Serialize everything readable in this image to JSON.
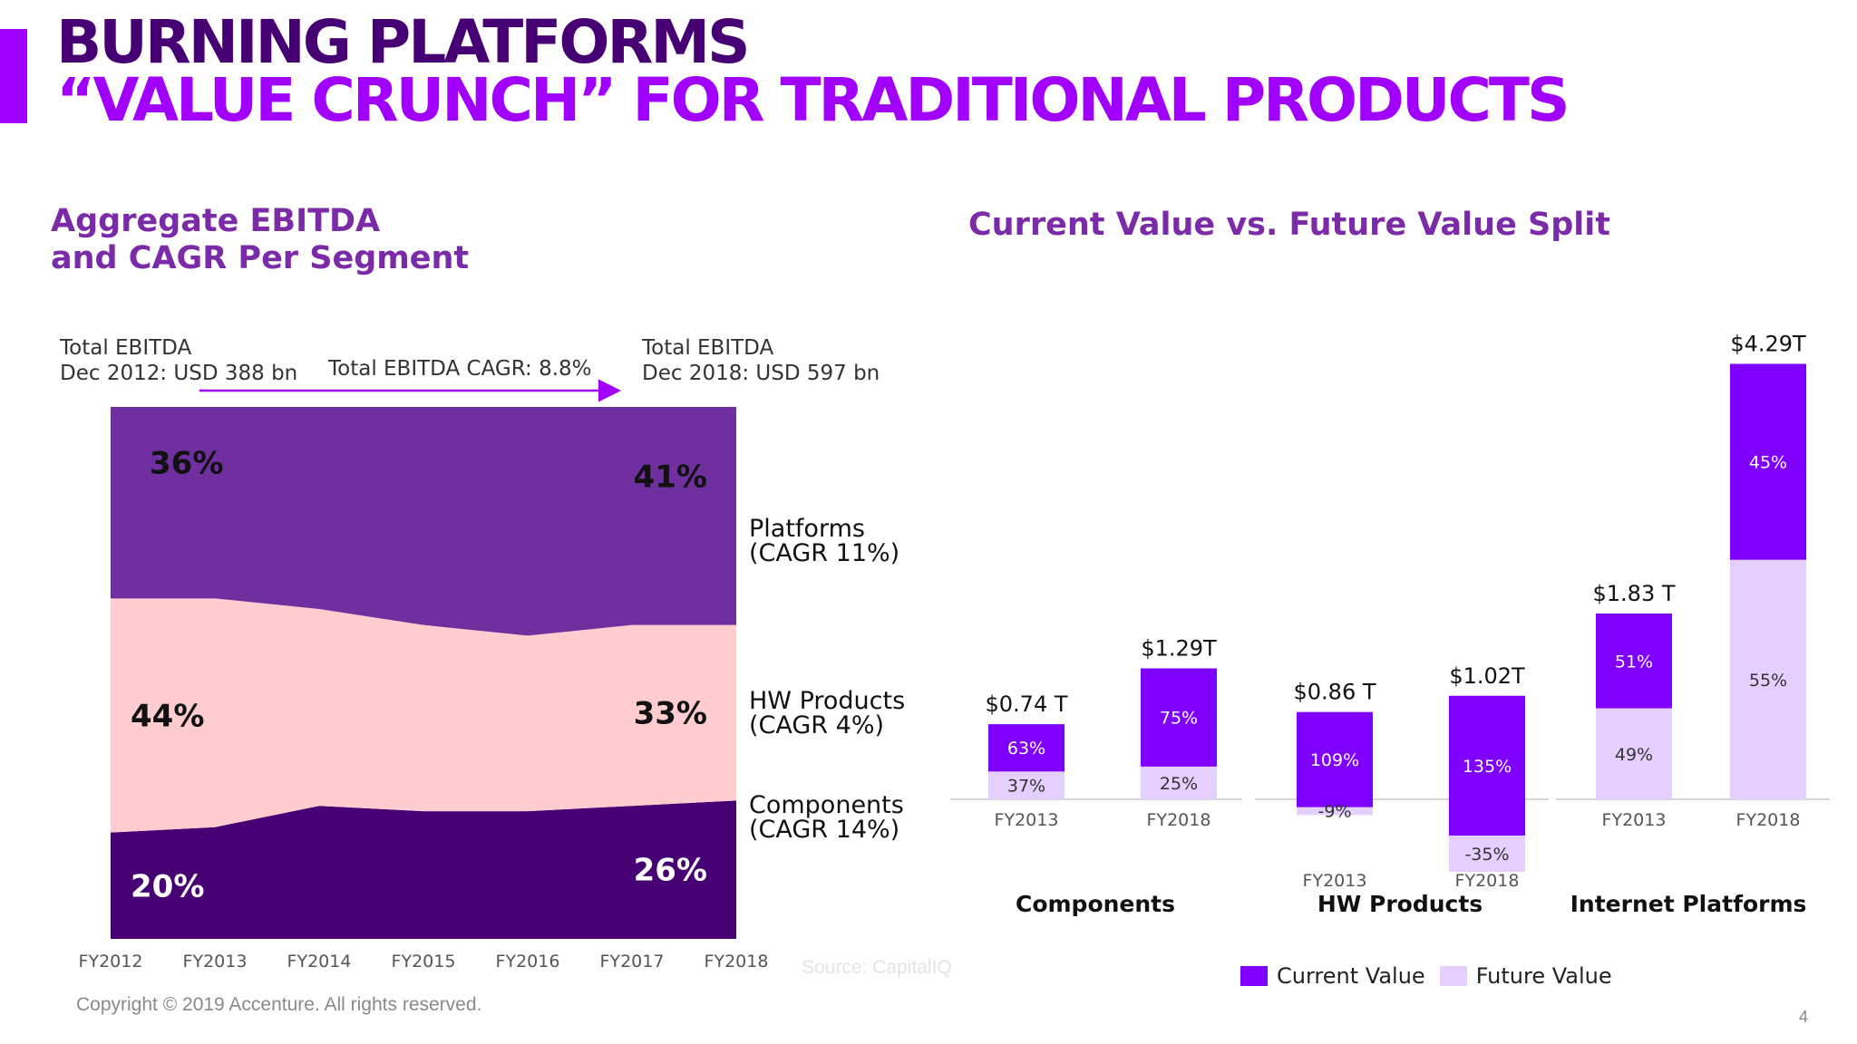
{
  "header": {
    "title_line1": "BURNING PLATFORMS",
    "title_line2": "“VALUE CRUNCH” FOR TRADITIONAL PRODUCTS"
  },
  "colors": {
    "accent": "#a100ff",
    "platforms": "#6f2f9f",
    "hw_products": "#ffcccf",
    "components": "#460073",
    "current_value": "#7f00ff",
    "future_value": "#e4cfff"
  },
  "left_panel": {
    "subtitle_line1": "Aggregate EBITDA",
    "subtitle_line2": "and CAGR Per Segment",
    "total_2012_line1": "Total EBITDA",
    "total_2012_line2": "Dec 2012: USD 388 bn",
    "cagr_note": "Total EBITDA CAGR: 8.8%",
    "total_2018_line1": "Total EBITDA",
    "total_2018_line2": "Dec  2018: USD 597 bn",
    "segments": [
      {
        "name_line1": "Platforms",
        "name_line2": "(CAGR 11%)"
      },
      {
        "name_line1": "HW Products",
        "name_line2": "(CAGR 4%)"
      },
      {
        "name_line1": "Components",
        "name_line2": "(CAGR 14%)"
      }
    ]
  },
  "right_panel": {
    "subtitle": "Current Value vs. Future Value Split"
  },
  "chart_data": [
    {
      "type": "area",
      "stacked": true,
      "normalized": true,
      "x": [
        "FY2012",
        "FY2013",
        "FY2014",
        "FY2015",
        "FY2016",
        "FY2017",
        "FY2018"
      ],
      "ylim": [
        0,
        100
      ],
      "series": [
        {
          "name": "Components",
          "values": [
            20,
            21,
            25,
            24,
            24,
            25,
            26
          ],
          "first_label": "20%",
          "last_label": "26%"
        },
        {
          "name": "HW Products",
          "values": [
            44,
            43,
            37,
            35,
            33,
            34,
            33
          ],
          "first_label": "44%",
          "last_label": "33%"
        },
        {
          "name": "Platforms",
          "values": [
            36,
            36,
            38,
            41,
            43,
            41,
            41
          ],
          "first_label": "36%",
          "last_label": "41%"
        }
      ]
    },
    {
      "type": "bar",
      "stacked": true,
      "legend": [
        "Current Value",
        "Future Value"
      ],
      "legend_position": "bottom",
      "groups": [
        {
          "name": "Components",
          "bars": [
            {
              "category": "FY2013",
              "total_label": "$0.74 T",
              "total": 0.74,
              "current_pct": 63,
              "future_pct": 37,
              "current_label": "63%",
              "future_label": "37%"
            },
            {
              "category": "FY2018",
              "total_label": "$1.29T",
              "total": 1.29,
              "current_pct": 75,
              "future_pct": 25,
              "current_label": "75%",
              "future_label": "25%"
            }
          ]
        },
        {
          "name": "HW Products",
          "bars": [
            {
              "category": "FY2013",
              "total_label": "$0.86 T",
              "total": 0.86,
              "current_pct": 109,
              "future_pct": -9,
              "current_label": "109%",
              "future_label": "-9%"
            },
            {
              "category": "FY2018",
              "total_label": "$1.02T",
              "total": 1.02,
              "current_pct": 135,
              "future_pct": -35,
              "current_label": "135%",
              "future_label": "-35%"
            }
          ]
        },
        {
          "name": "Internet Platforms",
          "bars": [
            {
              "category": "FY2013",
              "total_label": "$1.83 T",
              "total": 1.83,
              "current_pct": 51,
              "future_pct": 49,
              "current_label": "51%",
              "future_label": "49%"
            },
            {
              "category": "FY2018",
              "total_label": "$4.29T",
              "total": 4.29,
              "current_pct": 45,
              "future_pct": 55,
              "current_label": "45%",
              "future_label": "55%"
            }
          ]
        }
      ]
    }
  ],
  "footer": {
    "source": "Source: CapitalIQ",
    "copyright": "Copyright © 2019 Accenture. All rights reserved.",
    "page_number": "4"
  }
}
